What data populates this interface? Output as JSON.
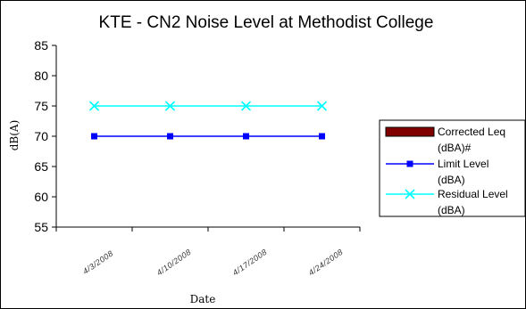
{
  "chart_data": {
    "type": "line",
    "title": "KTE - CN2 Noise Level at Methodist College",
    "xlabel": "Date",
    "ylabel": "dB(A)",
    "ylim": [
      55,
      85
    ],
    "yticks": [
      55,
      60,
      65,
      70,
      75,
      80,
      85
    ],
    "categories": [
      "4/3/2008",
      "4/10/2008",
      "4/17/2008",
      "4/24/2008"
    ],
    "series": [
      {
        "name": "Corrected Leq (dBA)#",
        "name_lines": [
          "Corrected Leq",
          "(dBA)#"
        ],
        "values": [
          null,
          null,
          null,
          null
        ],
        "color": "#800000",
        "marker": "rect"
      },
      {
        "name": "Limit Level (dBA)",
        "name_lines": [
          "Limit Level",
          "(dBA)"
        ],
        "values": [
          70,
          70,
          70,
          70
        ],
        "color": "#0000ff",
        "marker": "square"
      },
      {
        "name": "Residual Level (dBA)",
        "name_lines": [
          "Residual Level",
          "(dBA)"
        ],
        "values": [
          75,
          75,
          75,
          75
        ],
        "color": "#00ffff",
        "marker": "x"
      }
    ],
    "grid": false,
    "legend": "right"
  }
}
